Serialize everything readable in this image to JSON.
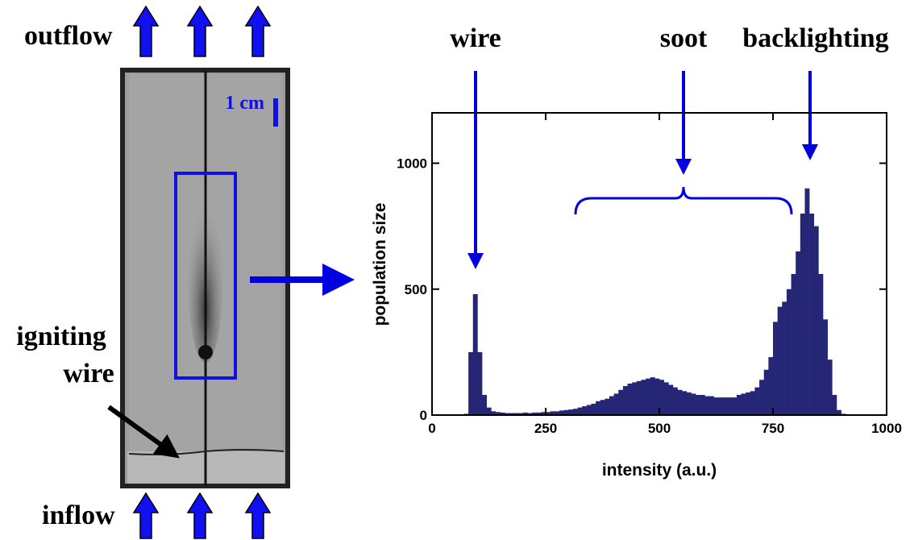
{
  "photo": {
    "outflow": "outflow",
    "inflow": "inflow",
    "igniting_wire": [
      "igniting",
      "wire"
    ],
    "scale": "1 cm"
  },
  "chart_data": {
    "type": "histogram",
    "annotations": [
      "wire",
      "soot",
      "backlighting"
    ],
    "xlabel": "intensity (a.u.)",
    "ylabel": "population size",
    "color": "#262676",
    "xlim": [
      0,
      1000
    ],
    "ylim": [
      0,
      1200
    ],
    "xticks": [
      0,
      250,
      500,
      750,
      1000
    ],
    "yticks": [
      0,
      500,
      1000
    ],
    "bins": [
      70,
      80,
      90,
      100,
      110,
      120,
      130,
      140,
      150,
      160,
      170,
      180,
      190,
      200,
      210,
      220,
      230,
      240,
      250,
      260,
      270,
      280,
      290,
      300,
      310,
      320,
      330,
      340,
      350,
      360,
      370,
      380,
      390,
      400,
      410,
      420,
      430,
      440,
      450,
      460,
      470,
      480,
      490,
      500,
      510,
      520,
      530,
      540,
      550,
      560,
      570,
      580,
      590,
      600,
      610,
      620,
      630,
      640,
      650,
      660,
      670,
      680,
      690,
      700,
      710,
      720,
      730,
      740,
      750,
      760,
      770,
      780,
      790,
      800,
      810,
      820,
      830,
      840,
      850,
      860,
      870,
      880,
      890,
      900,
      910
    ],
    "values": [
      5,
      250,
      480,
      250,
      80,
      30,
      15,
      12,
      10,
      8,
      8,
      8,
      8,
      10,
      8,
      10,
      10,
      12,
      12,
      15,
      15,
      18,
      20,
      22,
      25,
      30,
      35,
      40,
      45,
      55,
      60,
      65,
      75,
      85,
      100,
      115,
      125,
      130,
      135,
      140,
      145,
      150,
      145,
      140,
      130,
      120,
      110,
      100,
      95,
      90,
      85,
      80,
      80,
      75,
      75,
      70,
      70,
      70,
      70,
      70,
      80,
      85,
      90,
      95,
      110,
      140,
      180,
      230,
      370,
      430,
      450,
      500,
      560,
      650,
      800,
      900,
      800,
      750,
      560,
      380,
      220,
      80,
      20,
      5
    ]
  }
}
